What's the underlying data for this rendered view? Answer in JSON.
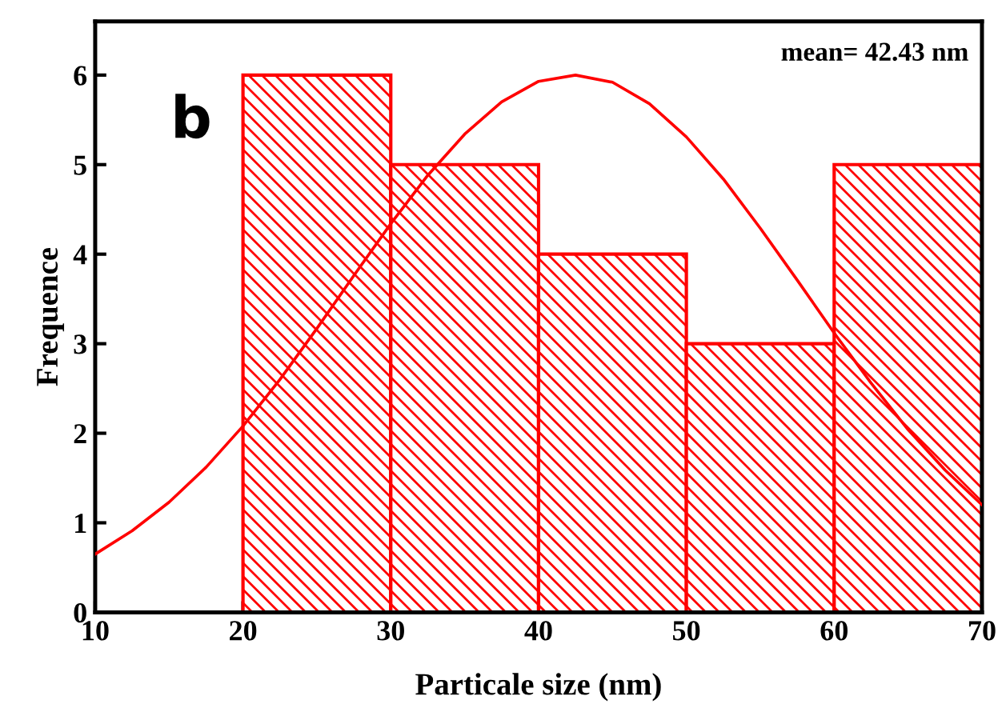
{
  "chart_data": {
    "type": "histogram",
    "xlabel": "Particale size (nm)",
    "ylabel": "Frequence",
    "xlim": [
      10,
      70
    ],
    "xticks": [
      10,
      20,
      30,
      40,
      50,
      60,
      70
    ],
    "ylim": [
      0,
      6.6
    ],
    "yticks": [
      0,
      1,
      2,
      3,
      4,
      5,
      6
    ],
    "grid": false,
    "annotations": [
      "mean= 42.43 nm",
      "b"
    ],
    "series": [
      {
        "color": "#ff0000",
        "bins": [
          20,
          30,
          40,
          50,
          60,
          70
        ],
        "values": [
          6,
          5,
          4,
          3,
          5
        ]
      },
      {
        "type": "line",
        "color": "#ff0000",
        "x": [
          10,
          12.5,
          15,
          17.5,
          20,
          22.5,
          25,
          27.5,
          30,
          32.5,
          35,
          37.5,
          40,
          42.5,
          45,
          47.5,
          50,
          52.5,
          55,
          57.5,
          60,
          62.5,
          65,
          67.5,
          70
        ],
        "values": [
          0.65,
          0.91,
          1.23,
          1.62,
          2.08,
          2.6,
          3.17,
          3.76,
          4.34,
          4.88,
          5.34,
          5.7,
          5.93,
          6.0,
          5.92,
          5.68,
          5.31,
          4.84,
          4.29,
          3.71,
          3.12,
          2.56,
          2.04,
          1.59,
          1.2
        ]
      }
    ]
  }
}
